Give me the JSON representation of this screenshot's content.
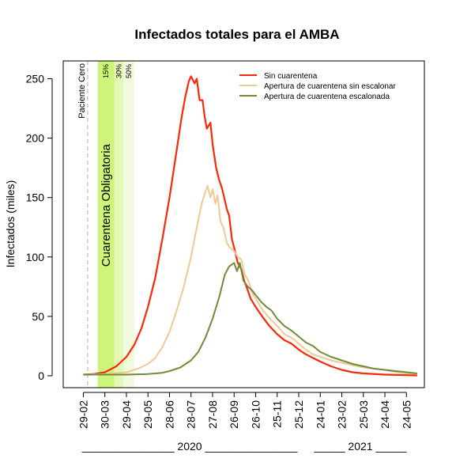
{
  "chart_data": {
    "type": "line",
    "title": "Infectados totales para el AMBA",
    "ylabel": "Infectados (miles)",
    "ylim": [
      -10,
      265
    ],
    "yticks": [
      0,
      50,
      100,
      150,
      200,
      250
    ],
    "x_tick_labels": [
      "29-02",
      "30-03",
      "29-04",
      "29-05",
      "28-06",
      "28-07",
      "27-08",
      "26-09",
      "26-10",
      "25-11",
      "25-12",
      "24-01",
      "23-02",
      "25-03",
      "24-04",
      "24-05"
    ],
    "x_tick_dates": [
      "2020-02-29",
      "2020-03-30",
      "2020-04-29",
      "2020-05-29",
      "2020-06-28",
      "2020-07-28",
      "2020-08-27",
      "2020-09-26",
      "2020-10-26",
      "2020-11-25",
      "2020-12-25",
      "2021-01-24",
      "2021-02-23",
      "2021-03-25",
      "2021-04-24",
      "2021-05-24"
    ],
    "year_labels": [
      {
        "text": "2020",
        "left_rule": "_______________",
        "right_rule": "_______________"
      },
      {
        "text": "2021",
        "left_rule": "_____",
        "right_rule": "_____"
      }
    ],
    "vline": {
      "date": "2020-03-06",
      "label": "Paciente Cero",
      "color": "#bbbbbb"
    },
    "bands": [
      {
        "start": "2020-03-20",
        "end": "2020-04-12",
        "label": "15%",
        "color": "#ccf57a"
      },
      {
        "start": "2020-04-12",
        "end": "2020-04-25",
        "label": "30%",
        "color": "#e3f8b6"
      },
      {
        "start": "2020-04-25",
        "end": "2020-05-10",
        "label": "50%",
        "color": "#f1fadc"
      }
    ],
    "band_annotation": "Cuarentena Obligatoria",
    "legend": {
      "position": "top-right"
    },
    "series": [
      {
        "name": "Sin cuarentena",
        "color": "#f52a0a",
        "points": [
          [
            "2020-02-29",
            1
          ],
          [
            "2020-03-15",
            1.5
          ],
          [
            "2020-03-30",
            3
          ],
          [
            "2020-04-15",
            8
          ],
          [
            "2020-04-29",
            16
          ],
          [
            "2020-05-10",
            26
          ],
          [
            "2020-05-20",
            40
          ],
          [
            "2020-05-29",
            58
          ],
          [
            "2020-06-08",
            82
          ],
          [
            "2020-06-18",
            115
          ],
          [
            "2020-06-28",
            150
          ],
          [
            "2020-07-08",
            190
          ],
          [
            "2020-07-15",
            218
          ],
          [
            "2020-07-20",
            235
          ],
          [
            "2020-07-25",
            248
          ],
          [
            "2020-07-28",
            252
          ],
          [
            "2020-08-02",
            246
          ],
          [
            "2020-08-05",
            250
          ],
          [
            "2020-08-09",
            232
          ],
          [
            "2020-08-13",
            232
          ],
          [
            "2020-08-16",
            218
          ],
          [
            "2020-08-19",
            208
          ],
          [
            "2020-08-24",
            213
          ],
          [
            "2020-08-27",
            195
          ],
          [
            "2020-09-01",
            175
          ],
          [
            "2020-09-05",
            165
          ],
          [
            "2020-09-09",
            158
          ],
          [
            "2020-09-13",
            148
          ],
          [
            "2020-09-16",
            140
          ],
          [
            "2020-09-19",
            135
          ],
          [
            "2020-09-23",
            115
          ],
          [
            "2020-09-26",
            108
          ],
          [
            "2020-10-01",
            95
          ],
          [
            "2020-10-06",
            90
          ],
          [
            "2020-10-10",
            80
          ],
          [
            "2020-10-15",
            72
          ],
          [
            "2020-10-19",
            65
          ],
          [
            "2020-10-26",
            58
          ],
          [
            "2020-11-04",
            50
          ],
          [
            "2020-11-14",
            42
          ],
          [
            "2020-11-25",
            35
          ],
          [
            "2020-12-05",
            30
          ],
          [
            "2020-12-15",
            27
          ],
          [
            "2020-12-25",
            22
          ],
          [
            "2021-01-04",
            18
          ],
          [
            "2021-01-14",
            15
          ],
          [
            "2021-01-24",
            12
          ],
          [
            "2021-02-08",
            8
          ],
          [
            "2021-02-23",
            5
          ],
          [
            "2021-03-10",
            3
          ],
          [
            "2021-03-25",
            2
          ],
          [
            "2021-04-24",
            1
          ],
          [
            "2021-05-24",
            0.5
          ],
          [
            "2021-06-08",
            0.3
          ]
        ]
      },
      {
        "name": "Apertura de cuarentena sin escalonar",
        "color": "#f0c895",
        "points": [
          [
            "2020-02-29",
            1
          ],
          [
            "2020-03-30",
            1.5
          ],
          [
            "2020-04-29",
            3
          ],
          [
            "2020-05-15",
            6
          ],
          [
            "2020-05-29",
            10
          ],
          [
            "2020-06-08",
            15
          ],
          [
            "2020-06-18",
            24
          ],
          [
            "2020-06-28",
            37
          ],
          [
            "2020-07-08",
            55
          ],
          [
            "2020-07-18",
            75
          ],
          [
            "2020-07-28",
            100
          ],
          [
            "2020-08-05",
            125
          ],
          [
            "2020-08-12",
            145
          ],
          [
            "2020-08-17",
            155
          ],
          [
            "2020-08-20",
            160
          ],
          [
            "2020-08-24",
            150
          ],
          [
            "2020-08-27",
            157
          ],
          [
            "2020-08-31",
            145
          ],
          [
            "2020-09-03",
            152
          ],
          [
            "2020-09-07",
            130
          ],
          [
            "2020-09-11",
            125
          ],
          [
            "2020-09-16",
            112
          ],
          [
            "2020-09-20",
            108
          ],
          [
            "2020-09-26",
            105
          ],
          [
            "2020-10-01",
            100
          ],
          [
            "2020-10-06",
            98
          ],
          [
            "2020-10-11",
            85
          ],
          [
            "2020-10-16",
            80
          ],
          [
            "2020-10-21",
            70
          ],
          [
            "2020-10-26",
            65
          ],
          [
            "2020-11-05",
            55
          ],
          [
            "2020-11-15",
            48
          ],
          [
            "2020-11-25",
            42
          ],
          [
            "2020-12-05",
            35
          ],
          [
            "2020-12-15",
            32
          ],
          [
            "2020-12-25",
            27
          ],
          [
            "2021-01-04",
            22
          ],
          [
            "2021-01-14",
            18
          ],
          [
            "2021-01-24",
            16
          ],
          [
            "2021-02-08",
            13
          ],
          [
            "2021-02-23",
            11
          ],
          [
            "2021-03-10",
            9
          ],
          [
            "2021-03-25",
            7
          ],
          [
            "2021-04-09",
            6
          ],
          [
            "2021-04-24",
            5
          ],
          [
            "2021-05-09",
            3
          ],
          [
            "2021-05-24",
            2
          ],
          [
            "2021-06-08",
            2
          ]
        ]
      },
      {
        "name": "Apertura de cuarentena escalonada",
        "color": "#6e8c3a",
        "points": [
          [
            "2020-02-29",
            1
          ],
          [
            "2020-03-30",
            1
          ],
          [
            "2020-04-29",
            1
          ],
          [
            "2020-05-29",
            1.5
          ],
          [
            "2020-06-18",
            2.5
          ],
          [
            "2020-06-28",
            4
          ],
          [
            "2020-07-13",
            7
          ],
          [
            "2020-07-28",
            13
          ],
          [
            "2020-08-07",
            20
          ],
          [
            "2020-08-17",
            32
          ],
          [
            "2020-08-27",
            48
          ],
          [
            "2020-09-06",
            68
          ],
          [
            "2020-09-13",
            85
          ],
          [
            "2020-09-19",
            92
          ],
          [
            "2020-09-26",
            95
          ],
          [
            "2020-09-30",
            88
          ],
          [
            "2020-10-04",
            95
          ],
          [
            "2020-10-09",
            80
          ],
          [
            "2020-10-15",
            75
          ],
          [
            "2020-10-21",
            72
          ],
          [
            "2020-10-26",
            68
          ],
          [
            "2020-11-03",
            62
          ],
          [
            "2020-11-10",
            58
          ],
          [
            "2020-11-17",
            55
          ],
          [
            "2020-11-25",
            48
          ],
          [
            "2020-12-05",
            42
          ],
          [
            "2020-12-15",
            38
          ],
          [
            "2020-12-25",
            33
          ],
          [
            "2021-01-04",
            28
          ],
          [
            "2021-01-14",
            25
          ],
          [
            "2021-01-24",
            20
          ],
          [
            "2021-02-08",
            16
          ],
          [
            "2021-02-23",
            13
          ],
          [
            "2021-03-10",
            10
          ],
          [
            "2021-03-25",
            8
          ],
          [
            "2021-04-09",
            6
          ],
          [
            "2021-04-24",
            5
          ],
          [
            "2021-05-09",
            4
          ],
          [
            "2021-05-24",
            3
          ],
          [
            "2021-06-08",
            2
          ]
        ]
      }
    ]
  }
}
